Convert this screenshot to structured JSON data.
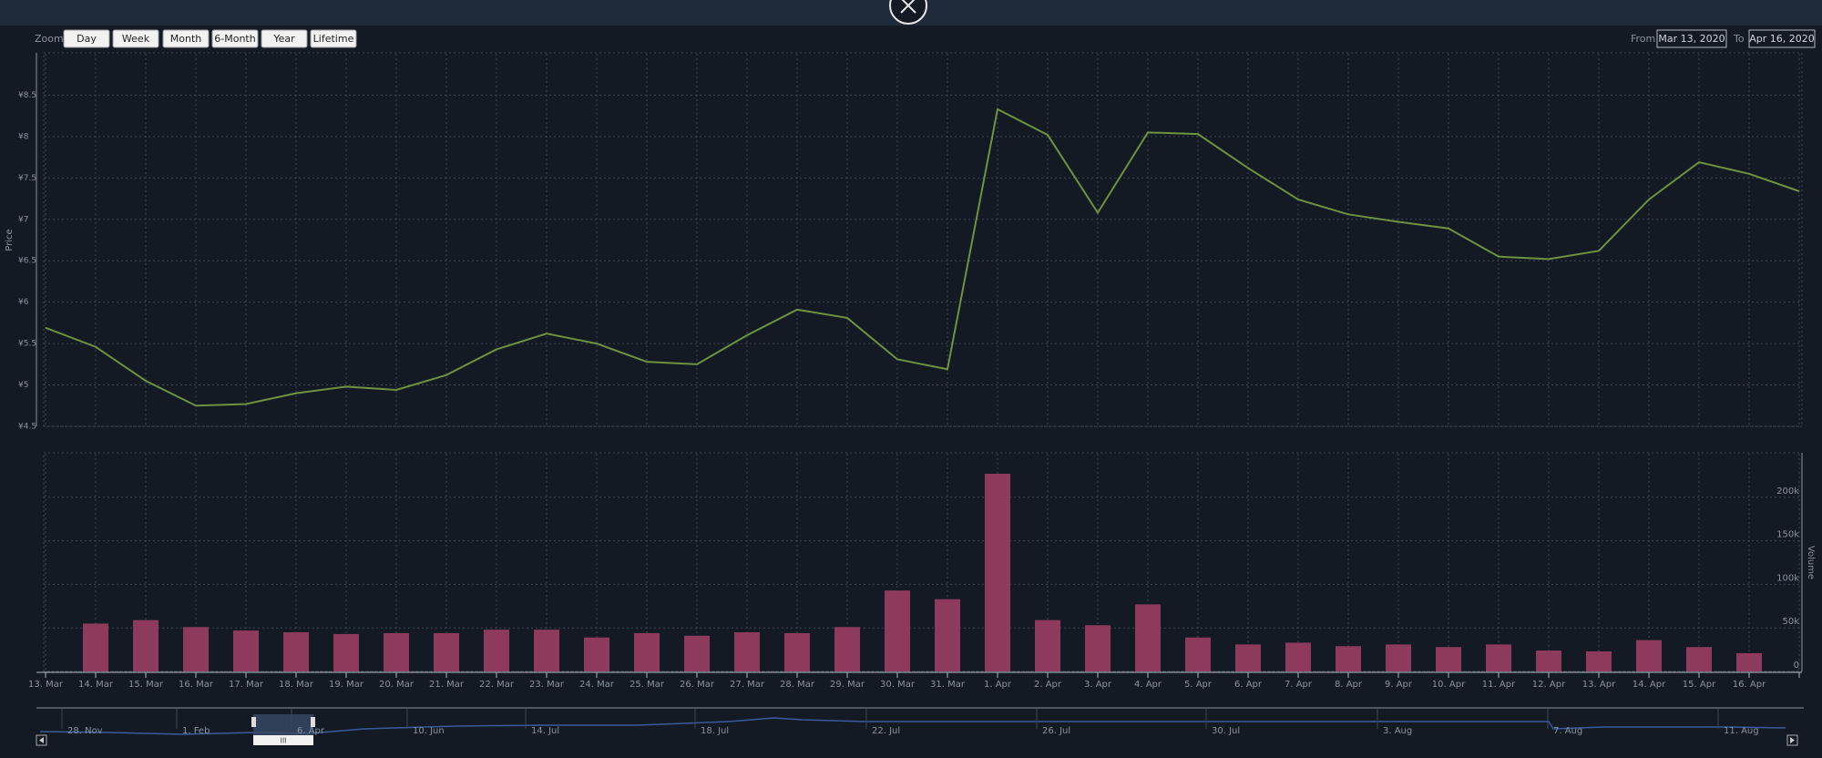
{
  "toolbar": {
    "zoom_label": "Zoom",
    "buttons": [
      "Day",
      "Week",
      "Month",
      "6-Month",
      "Year",
      "Lifetime"
    ],
    "from_label": "From",
    "from": "Mar 13, 2020",
    "to_label": "To",
    "to": "Apr 16, 2020"
  },
  "chart_data": {
    "type": "stock",
    "grid": true,
    "categories": [
      "13. Mar",
      "14. Mar",
      "15. Mar",
      "16. Mar",
      "17. Mar",
      "18. Mar",
      "19. Mar",
      "20. Mar",
      "21. Mar",
      "22. Mar",
      "23. Mar",
      "24. Mar",
      "25. Mar",
      "26. Mar",
      "27. Mar",
      "28. Mar",
      "29. Mar",
      "30. Mar",
      "31. Mar",
      "1. Apr",
      "2. Apr",
      "3. Apr",
      "4. Apr",
      "5. Apr",
      "6. Apr",
      "7. Apr",
      "8. Apr",
      "9. Apr",
      "10. Apr",
      "11. Apr",
      "12. Apr",
      "13. Apr",
      "14. Apr",
      "15. Apr",
      "16. Apr",
      null
    ],
    "price": {
      "ylabel": "Price",
      "color": "#6f9140",
      "ylim": [
        4.5,
        9
      ],
      "yticks": [
        {
          "value": 4.5,
          "label": "¥4.5"
        },
        {
          "value": 5,
          "label": "¥5"
        },
        {
          "value": 5.5,
          "label": "¥5.5"
        },
        {
          "value": 6,
          "label": "¥6"
        },
        {
          "value": 6.5,
          "label": "¥6.5"
        },
        {
          "value": 7,
          "label": "¥7"
        },
        {
          "value": 7.5,
          "label": "¥7.5"
        },
        {
          "value": 8,
          "label": "¥8"
        },
        {
          "value": 8.5,
          "label": "¥8.5"
        }
      ],
      "values": [
        5.69,
        5.46,
        5.05,
        4.75,
        4.77,
        4.9,
        4.98,
        4.94,
        5.12,
        5.43,
        5.62,
        5.5,
        5.28,
        5.25,
        5.6,
        5.91,
        5.81,
        5.31,
        5.19,
        8.33,
        8.02,
        7.08,
        8.05,
        8.03,
        7.62,
        7.24,
        7.06,
        6.97,
        6.89,
        6.55,
        6.52,
        6.62,
        7.24,
        7.69,
        7.55,
        7.34
      ]
    },
    "volume": {
      "ylabel": "Volume",
      "color": "#8e3a5c",
      "ylim": [
        0,
        250000
      ],
      "yticks": [
        0,
        {
          "value": 50000,
          "label": "50k"
        },
        {
          "value": 100000,
          "label": "100k"
        },
        {
          "value": 150000,
          "label": "150k"
        },
        {
          "value": 200000,
          "label": "200k"
        }
      ],
      "values": [
        null,
        55000,
        59000,
        51000,
        47000,
        45000,
        43000,
        44000,
        44000,
        48000,
        48000,
        39000,
        44000,
        41000,
        45000,
        44000,
        51000,
        93000,
        83000,
        227000,
        59000,
        53000,
        77000,
        39000,
        31000,
        33000,
        29000,
        31000,
        28000,
        31000,
        24000,
        23000,
        36000,
        28000,
        21000,
        null
      ]
    }
  },
  "navigator": {
    "labels": [
      "28. Nov",
      "1. Feb",
      "6. Apr",
      "10. Jun",
      "14. Jul",
      "18. Jul",
      "22. Jul",
      "26. Jul",
      "30. Jul",
      "3. Aug",
      "7. Aug",
      "11. Aug"
    ],
    "handle": "III"
  }
}
